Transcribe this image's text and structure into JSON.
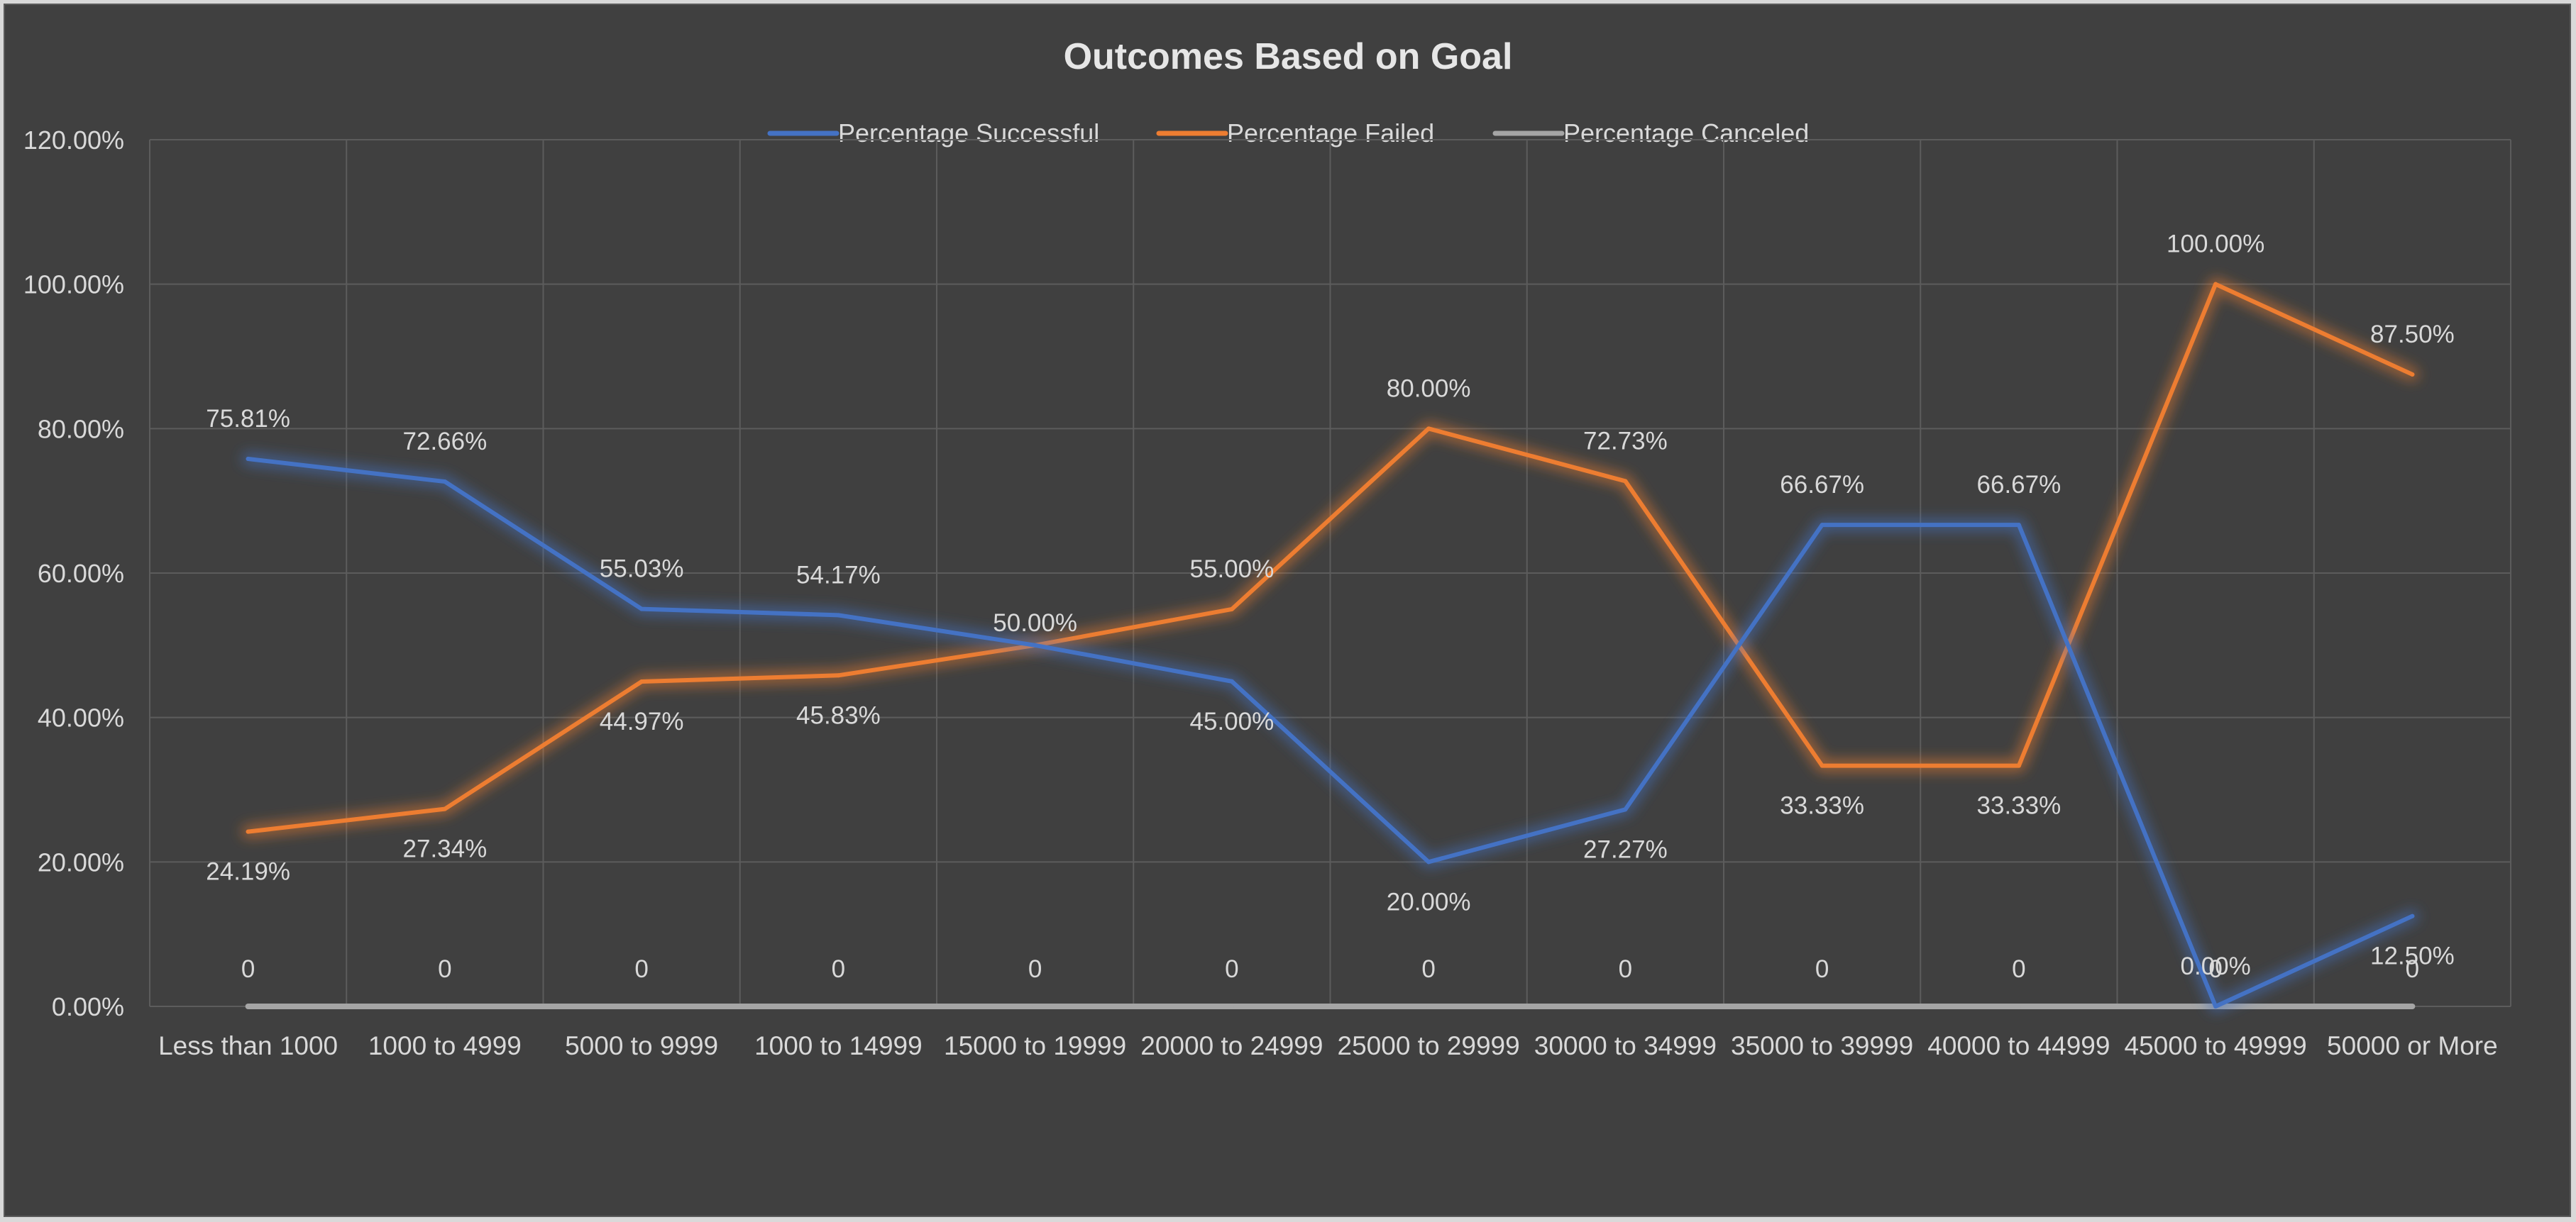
{
  "chart_data": {
    "type": "line",
    "title": "Outcomes Based on Goal",
    "xlabel": "",
    "ylabel": "",
    "categories": [
      "Less than 1000",
      "1000 to 4999",
      "5000 to 9999",
      "1000 to 14999",
      "15000 to 19999",
      "20000 to 24999",
      "25000 to 29999",
      "30000 to 34999",
      "35000 to 39999",
      "40000 to 44999",
      "45000 to 49999",
      "50000 or More"
    ],
    "ylim": [
      0,
      120
    ],
    "yticks": [
      0,
      20,
      40,
      60,
      80,
      100,
      120
    ],
    "ytick_labels": [
      "0.00%",
      "20.00%",
      "40.00%",
      "60.00%",
      "80.00%",
      "100.00%",
      "120.00%"
    ],
    "grid": true,
    "legend_position": "top",
    "series": [
      {
        "name": "Percentage Successful",
        "color": "#4472c4",
        "values": [
          75.81,
          72.66,
          55.03,
          54.17,
          50.0,
          45.0,
          20.0,
          27.27,
          66.67,
          66.67,
          0.0,
          12.5
        ],
        "labels": [
          "75.81%",
          "72.66%",
          "55.03%",
          "54.17%",
          "50.00%",
          "45.00%",
          "20.00%",
          "27.27%",
          "66.67%",
          "66.67%",
          "0.00%",
          "12.50%"
        ]
      },
      {
        "name": "Percentage Failed",
        "color": "#ed7d31",
        "values": [
          24.19,
          27.34,
          44.97,
          45.83,
          50.0,
          55.0,
          80.0,
          72.73,
          33.33,
          33.33,
          100.0,
          87.5
        ],
        "labels": [
          "24.19%",
          "27.34%",
          "44.97%",
          "45.83%",
          "",
          "55.00%",
          "80.00%",
          "72.73%",
          "33.33%",
          "33.33%",
          "100.00%",
          "87.50%"
        ]
      },
      {
        "name": "Percentage Canceled",
        "color": "#a5a5a5",
        "values": [
          0,
          0,
          0,
          0,
          0,
          0,
          0,
          0,
          0,
          0,
          0,
          0
        ],
        "labels": [
          "0",
          "0",
          "0",
          "0",
          "0",
          "0",
          "0",
          "0",
          "0",
          "0",
          "0",
          "0"
        ]
      }
    ]
  }
}
